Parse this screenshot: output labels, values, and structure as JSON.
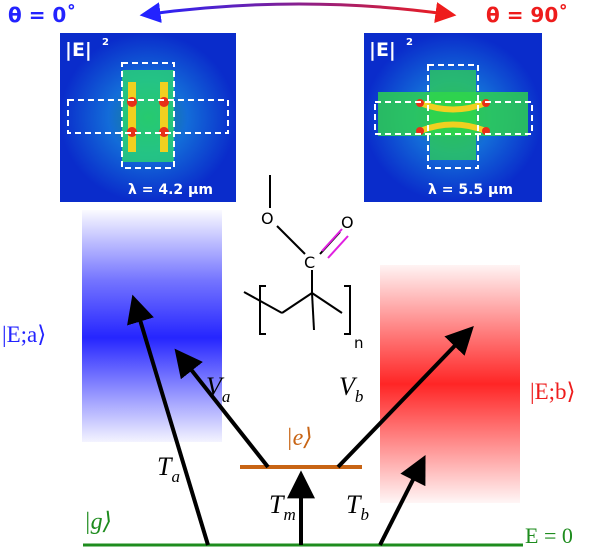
{
  "angles": {
    "left": "θ = 0˚",
    "right": "θ = 90˚",
    "left_color": "#2323ff",
    "right_color": "#ee1c1c"
  },
  "field_maps": {
    "left": {
      "intensity_label": "|E|",
      "exponent": "2",
      "wavelength": "λ = 4.2 μm"
    },
    "right": {
      "intensity_label": "|E|",
      "exponent": "2",
      "wavelength": "λ = 5.5 μm"
    }
  },
  "molecule": {
    "oxygen_single": "O",
    "oxygen_double": "O",
    "carbon": "C",
    "repeat_n": "n",
    "double_bond_color": "#e020e0"
  },
  "states": {
    "ea": "|E;a⟩",
    "eb": "|E;b⟩",
    "e": "|e⟩",
    "g": "|g⟩",
    "e_zero": "E = 0"
  },
  "transitions": {
    "Ta": {
      "main": "T",
      "sub": "a"
    },
    "Va": {
      "main": "V",
      "sub": "a"
    },
    "Vb": {
      "main": "V",
      "sub": "b"
    },
    "Tm": {
      "main": "T",
      "sub": "m"
    },
    "Tb": {
      "main": "T",
      "sub": "b"
    }
  },
  "colors": {
    "blue_band": "#1a1aff",
    "red_band": "#ff1a1a",
    "excited_level": "#c86414",
    "ground_level": "#1e8c1e",
    "arrow": "#000000"
  }
}
